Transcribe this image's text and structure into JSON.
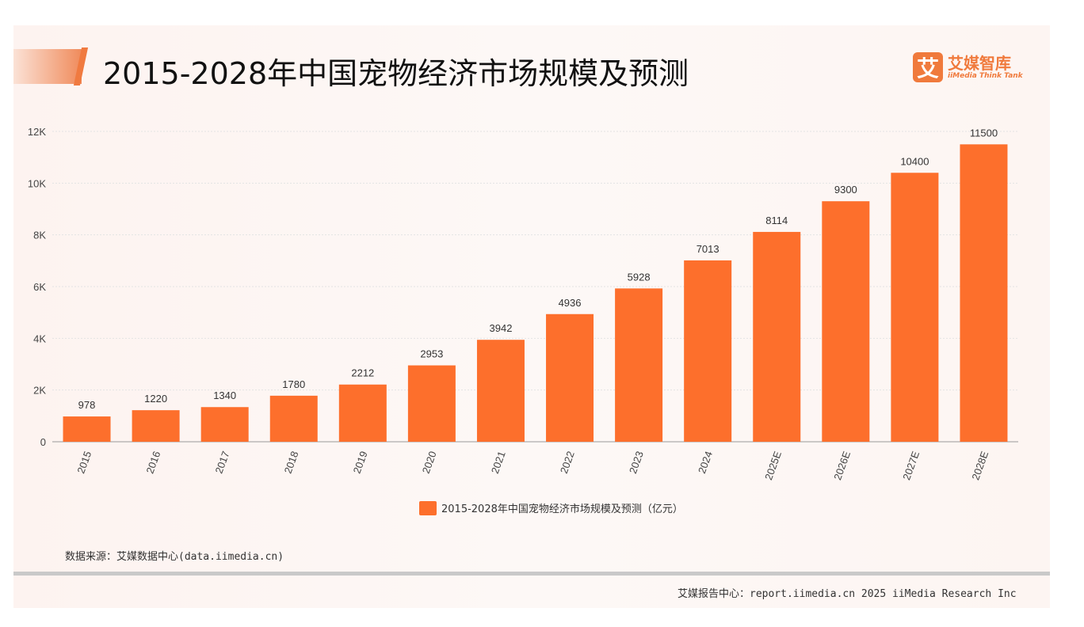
{
  "header": {
    "title": "2015-2028年中国宠物经济市场规模及预测"
  },
  "logo": {
    "mark": "艾",
    "name_cn": "艾媒智库",
    "name_en": "iiMedia Think Tank"
  },
  "chart_data": {
    "type": "bar",
    "title": "2015-2028年中国宠物经济市场规模及预测",
    "categories": [
      "2015",
      "2016",
      "2017",
      "2018",
      "2019",
      "2020",
      "2021",
      "2022",
      "2023",
      "2024",
      "2025E",
      "2026E",
      "2027E",
      "2028E"
    ],
    "series": [
      {
        "name": "2015-2028年中国宠物经济市场规模及预测（亿元）",
        "values": [
          978,
          1220,
          1340,
          1780,
          2212,
          2953,
          3942,
          4936,
          5928,
          7013,
          8114,
          9300,
          10400,
          11500
        ],
        "color": "#fd6f2c"
      }
    ],
    "yticks": [
      0,
      2000,
      4000,
      6000,
      8000,
      10000,
      12000
    ],
    "ytick_labels": [
      "0",
      "2K",
      "4K",
      "6K",
      "8K",
      "10K",
      "12K"
    ],
    "ylim": [
      0,
      12000
    ],
    "xlabel": "",
    "ylabel": "",
    "grid": true,
    "legend": "bottom-center"
  },
  "footer": {
    "source": "数据来源：艾媒数据中心(data.iimedia.cn)",
    "report": "艾媒报告中心：report.iimedia.cn   2025 iiMedia Research Inc"
  }
}
